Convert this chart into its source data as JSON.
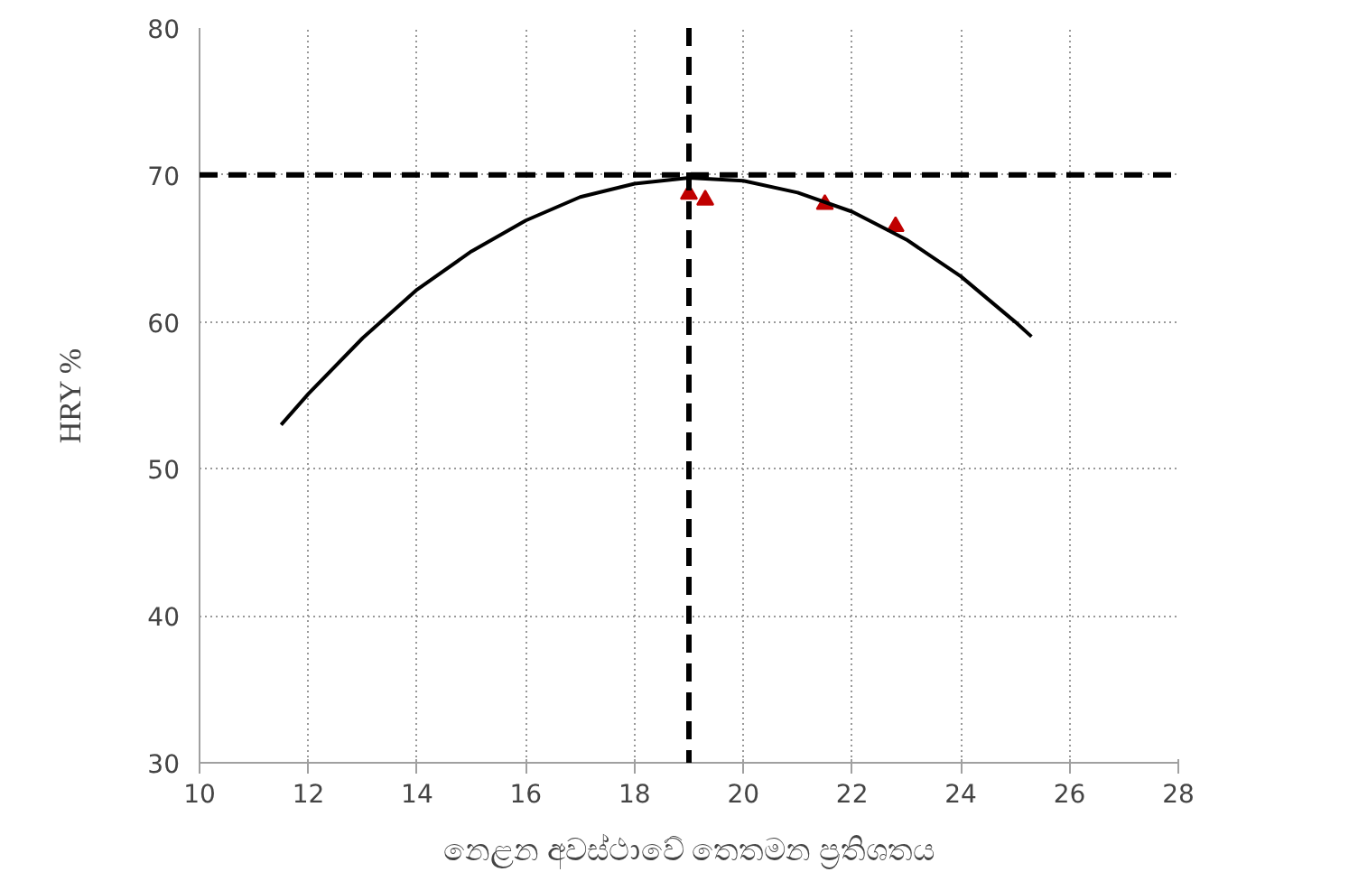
{
  "chart_data": {
    "type": "scatter",
    "xlabel": "නෙළන අවස්ථාවේ තෙතමන ප්‍රතිශතය",
    "ylabel": "HRY %",
    "xlim": [
      10,
      28
    ],
    "ylim": [
      30,
      80
    ],
    "xticks": [
      10,
      12,
      14,
      16,
      18,
      20,
      22,
      24,
      26,
      28
    ],
    "yticks": [
      30,
      40,
      50,
      60,
      70,
      80
    ],
    "grid": true,
    "marker": "triangle",
    "series": [
      {
        "color": "#c00000",
        "x": [
          19.0,
          19.3,
          21.5,
          22.8
        ],
        "values": [
          68.7,
          68.3,
          68.0,
          66.5
        ]
      },
      {
        "type": "line",
        "color": "#000000",
        "marker": "none",
        "x": [
          11.5,
          12,
          13,
          14,
          15,
          16,
          17,
          18,
          19,
          20,
          21,
          22,
          23,
          24,
          25,
          25.3
        ],
        "values": [
          53.0,
          55.1,
          58.9,
          62.2,
          64.8,
          66.9,
          68.5,
          69.4,
          69.8,
          69.6,
          68.8,
          67.5,
          65.6,
          63.1,
          60.0,
          59.0
        ]
      }
    ],
    "ref_lines": [
      {
        "axis": "y",
        "value": 70,
        "color": "#000000",
        "line_style": "dashed"
      },
      {
        "axis": "x",
        "value": 19,
        "color": "#000000",
        "line_style": "dashed"
      }
    ]
  }
}
